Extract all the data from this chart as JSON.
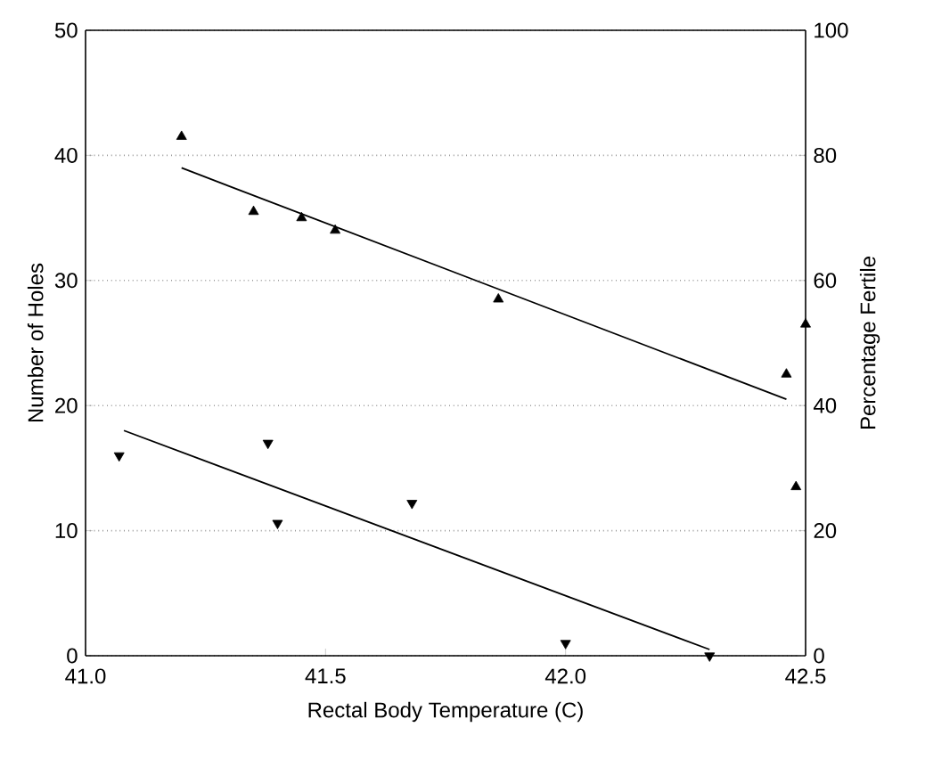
{
  "chart_data": {
    "type": "scatter",
    "xlabel": "Rectal Body Temperature (C)",
    "ylabel": "Number of Holes",
    "y2label": "Percentage Fertile",
    "xlim": [
      41.0,
      42.5
    ],
    "xticks": [
      {
        "value": 41.0,
        "label": "41.0"
      },
      {
        "value": 41.5,
        "label": "41.5"
      },
      {
        "value": 42.0,
        "label": "42.0"
      },
      {
        "value": 42.5,
        "label": "42.5"
      }
    ],
    "ylim": [
      0,
      50
    ],
    "yticks": [
      0,
      10,
      20,
      30,
      40,
      50
    ],
    "y2lim": [
      0,
      100
    ],
    "y2ticks": [
      0,
      20,
      40,
      60,
      80,
      100
    ],
    "grid": "y",
    "marker": "triangle",
    "series": [
      {
        "axis": "y2",
        "color": "#000000",
        "x": [
          41.2,
          41.35,
          41.45,
          41.52,
          41.86,
          42.46,
          42.5,
          42.48
        ],
        "values": [
          83,
          71,
          70,
          68,
          57,
          45,
          53,
          27
        ]
      },
      {
        "axis": "y",
        "color": "#000000",
        "x": [
          41.07,
          41.38,
          41.4,
          41.68,
          42.0,
          42.3
        ],
        "values": [
          16,
          17,
          10.6,
          12.2,
          1,
          0
        ]
      },
      {
        "type": "line",
        "axis": "y2",
        "color": "#000000",
        "marker": "none",
        "x": [
          41.2,
          42.46
        ],
        "values": [
          78,
          41
        ]
      },
      {
        "type": "line",
        "axis": "y",
        "color": "#000000",
        "marker": "none",
        "x": [
          41.08,
          42.3
        ],
        "values": [
          18,
          0.5
        ]
      }
    ]
  }
}
